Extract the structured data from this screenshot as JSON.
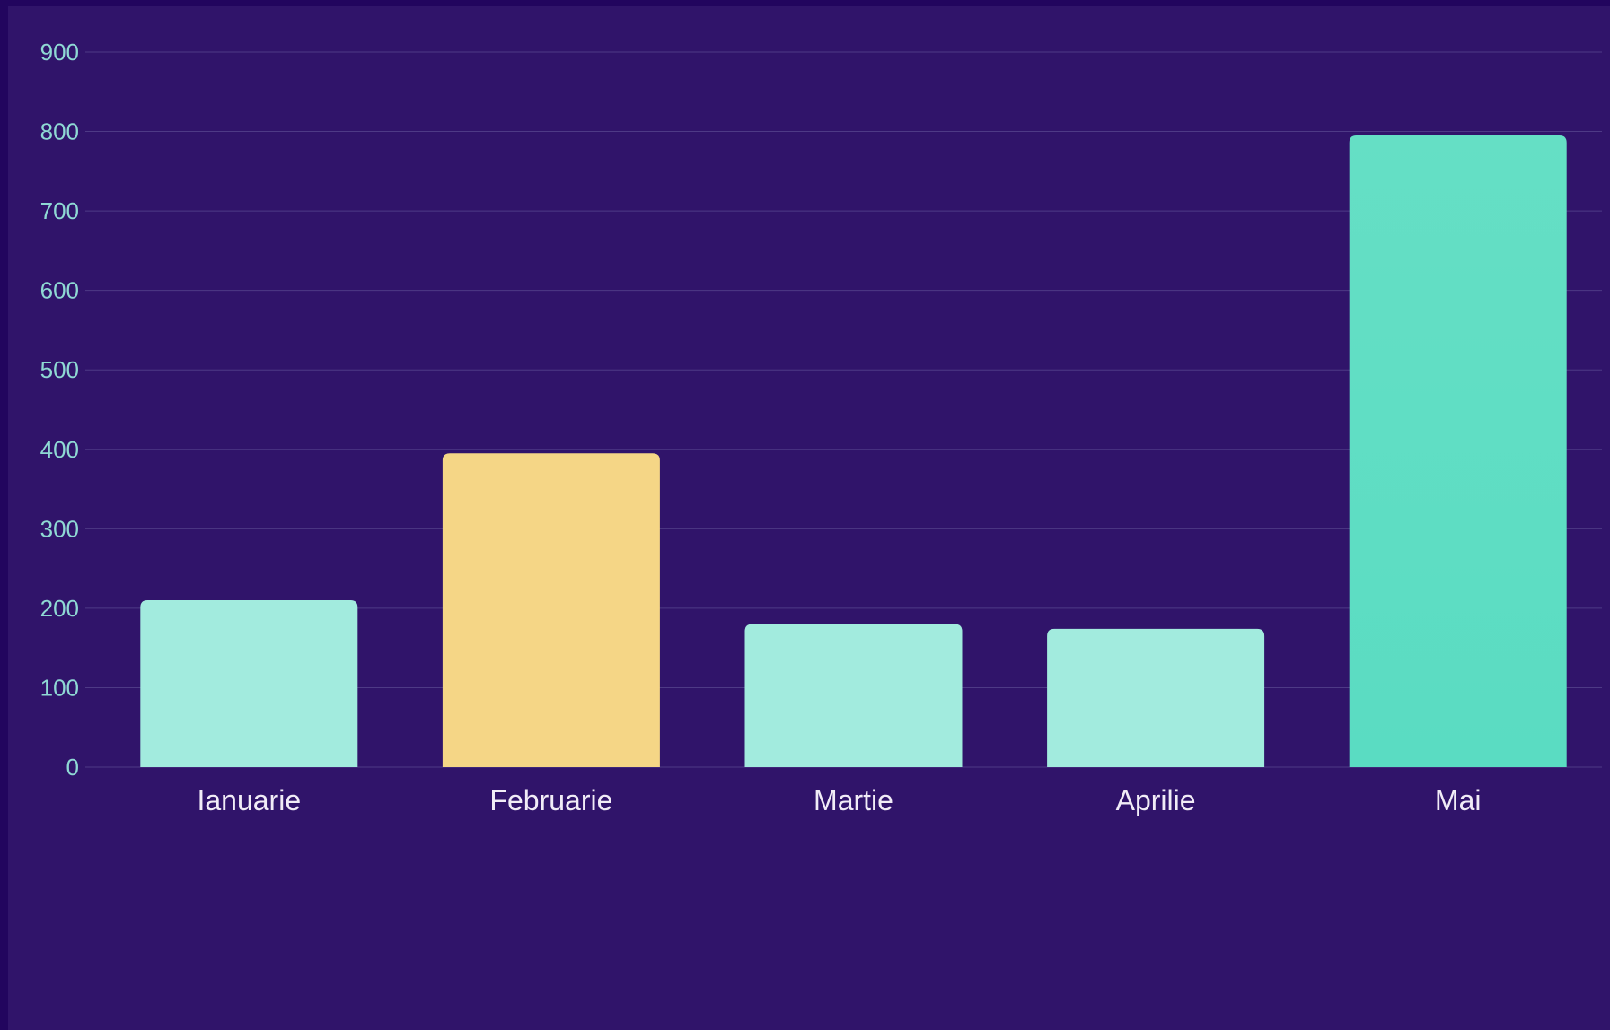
{
  "chart_data": {
    "type": "bar",
    "title": "",
    "xlabel": "",
    "ylabel": "",
    "categories": [
      "Ianuarie",
      "Februarie",
      "Martie",
      "Aprilie",
      "Mai"
    ],
    "values": [
      210,
      395,
      180,
      174,
      795
    ],
    "ylim": [
      0,
      900
    ],
    "yticks": [
      "0",
      "100",
      "200",
      "300",
      "400",
      "500",
      "600",
      "700",
      "800",
      "900"
    ],
    "grid": true,
    "highlight_index": 1,
    "max_index": 4,
    "colors": {
      "background": "#30146a",
      "outer_background": "#22055e",
      "bar_default": "#a2ebde",
      "bar_highlight": "#f5d686",
      "bar_max_top": "#65dfc5",
      "bar_max_bottom": "#5adcc2",
      "grid": "#4e3a86",
      "tick_text": "#8fd9d4",
      "category_text": "#f1ecf7"
    }
  }
}
